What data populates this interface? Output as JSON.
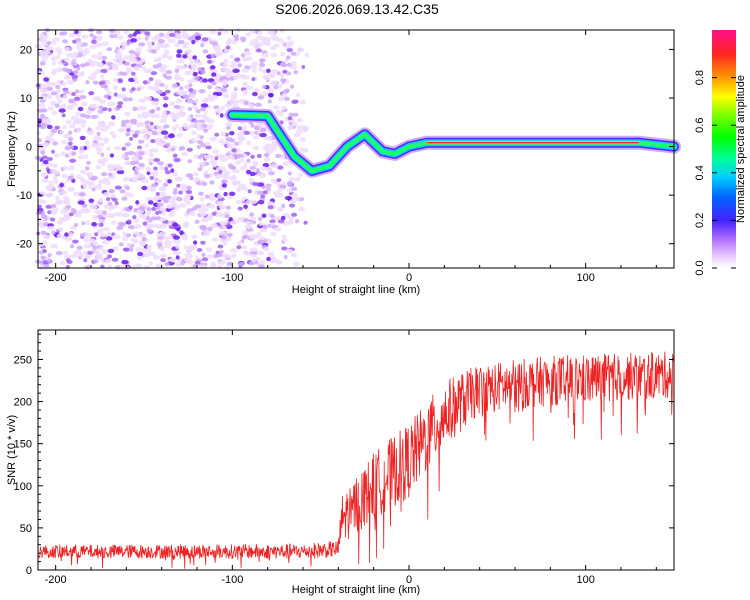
{
  "title": "S206.2026.069.13.42.C35",
  "chart_data": [
    {
      "type": "heatmap",
      "name": "spectrogram",
      "xlabel": "Height of straight line (km)",
      "ylabel": "Frequency (Hz)",
      "xlim": [
        -210,
        150
      ],
      "ylim": [
        -25,
        24
      ],
      "xticks": [
        -200,
        -100,
        0,
        100
      ],
      "yticks": [
        -20,
        -10,
        0,
        10,
        20
      ],
      "noise_region_x": [
        -210,
        -55
      ],
      "ridge_path": [
        {
          "x": -100,
          "y": 6.5
        },
        {
          "x": -80,
          "y": 6.3
        },
        {
          "x": -75,
          "y": 3.5
        },
        {
          "x": -65,
          "y": -2
        },
        {
          "x": -55,
          "y": -5
        },
        {
          "x": -45,
          "y": -4
        },
        {
          "x": -35,
          "y": 0
        },
        {
          "x": -25,
          "y": 2.5
        },
        {
          "x": -15,
          "y": -1
        },
        {
          "x": -8,
          "y": -1.5
        },
        {
          "x": 0,
          "y": 0
        },
        {
          "x": 10,
          "y": 0.8
        },
        {
          "x": 130,
          "y": 0.8
        },
        {
          "x": 150,
          "y": 0
        }
      ],
      "colorbar": {
        "label": "Normalized spectral amplitude",
        "range": [
          0.0,
          1.0
        ],
        "ticks": [
          0.0,
          0.2,
          0.4,
          0.6,
          0.8
        ]
      }
    },
    {
      "type": "line",
      "name": "snr",
      "xlabel": "Height of straight line (km)",
      "ylabel": "SNR (10 * v/v)",
      "xlim": [
        -210,
        150
      ],
      "ylim": [
        0,
        285
      ],
      "xticks": [
        -200,
        -100,
        0,
        100
      ],
      "yticks": [
        0,
        50,
        100,
        150,
        200,
        250
      ],
      "series_color": "#ee2222",
      "trend": [
        {
          "x": -210,
          "mean": 22,
          "spread": 8
        },
        {
          "x": -60,
          "mean": 22,
          "spread": 9
        },
        {
          "x": -40,
          "mean": 25,
          "spread": 10
        },
        {
          "x": -38,
          "mean": 60,
          "spread": 30
        },
        {
          "x": -20,
          "mean": 100,
          "spread": 40
        },
        {
          "x": 0,
          "mean": 130,
          "spread": 45
        },
        {
          "x": 20,
          "mean": 185,
          "spread": 40
        },
        {
          "x": 40,
          "mean": 215,
          "spread": 30
        },
        {
          "x": 80,
          "mean": 225,
          "spread": 30
        },
        {
          "x": 150,
          "mean": 232,
          "spread": 28
        }
      ]
    }
  ]
}
